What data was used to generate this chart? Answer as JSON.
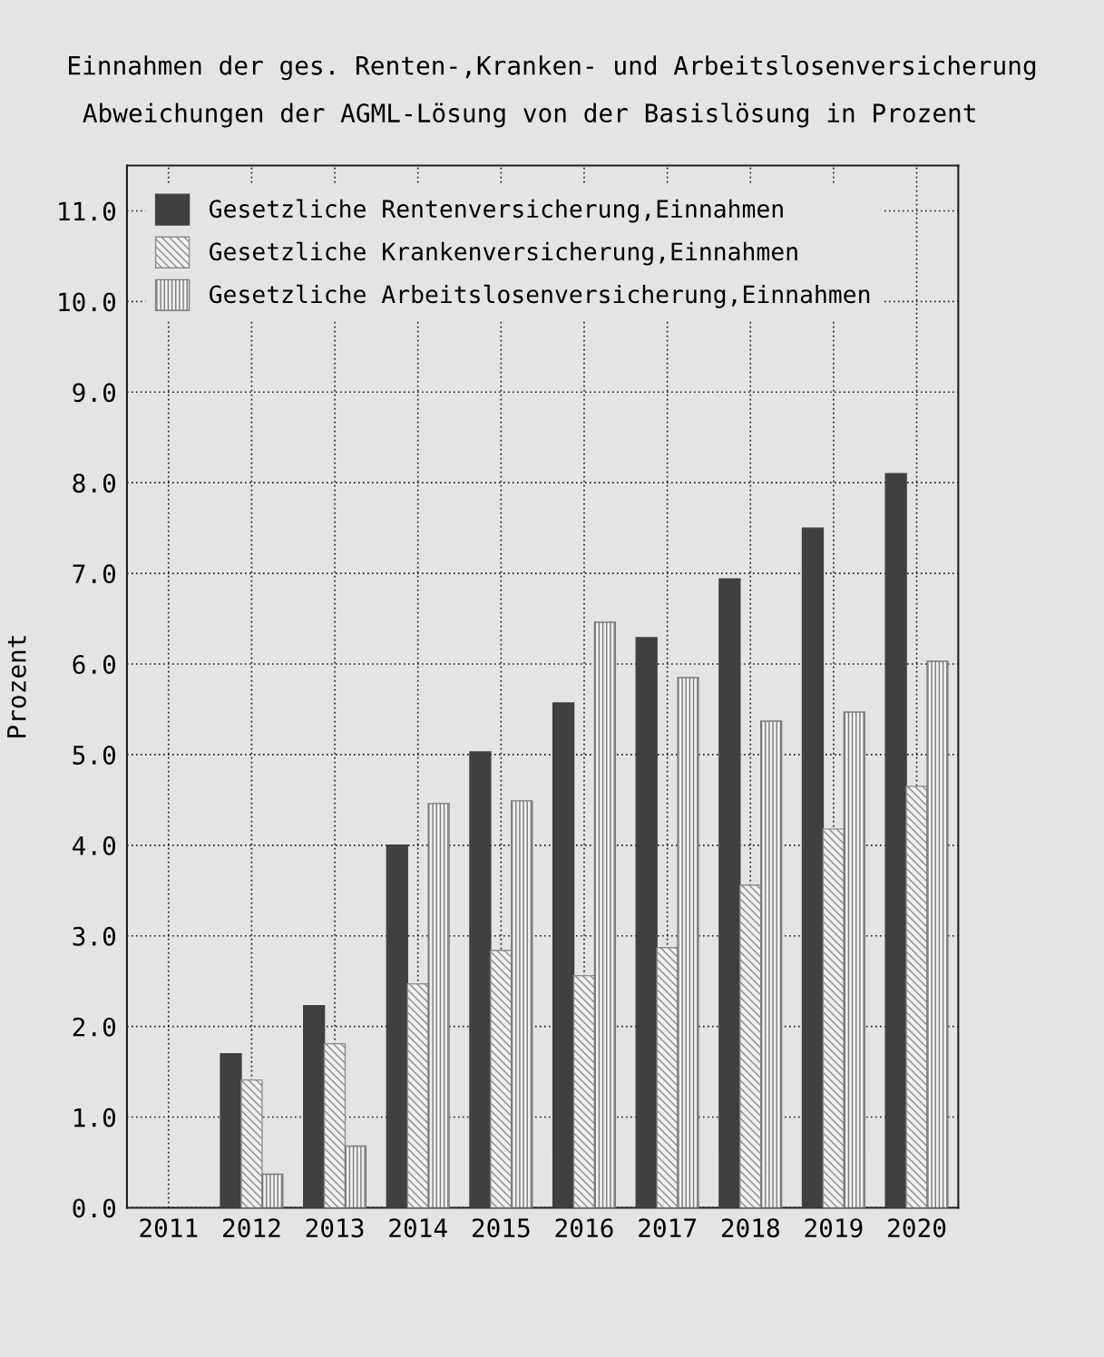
{
  "chart_data": {
    "type": "bar",
    "title": "Einnahmen der ges. Renten-,Kranken- und Arbeitslosenversicherung",
    "subtitle": "Abweichungen der AGML-Lösung von der Basislösung in Prozent",
    "ylabel": "Prozent",
    "categories": [
      "2011",
      "2012",
      "2013",
      "2014",
      "2015",
      "2016",
      "2017",
      "2018",
      "2019",
      "2020"
    ],
    "series": [
      {
        "name": "Gesetzliche Rentenversicherung,Einnahmen",
        "color": "#404040",
        "values": [
          null,
          1.7,
          2.23,
          4.0,
          5.03,
          5.57,
          6.29,
          6.94,
          7.5,
          8.1
        ]
      },
      {
        "name": "Gesetzliche Krankenversicherung,Einnahmen",
        "color": "#8c8c8c",
        "values": [
          null,
          1.41,
          1.81,
          2.47,
          2.84,
          2.56,
          2.87,
          3.56,
          4.18,
          4.65
        ]
      },
      {
        "name": "Gesetzliche Arbeitslosenversicherung,Einnahmen",
        "color": "#7a7a7a",
        "values": [
          null,
          0.37,
          0.68,
          4.46,
          4.49,
          6.46,
          5.85,
          5.37,
          5.47,
          6.03
        ]
      }
    ],
    "ylim": [
      0,
      11.5
    ],
    "yticks": [
      {
        "value": 0,
        "label": "0.0"
      },
      {
        "value": 1,
        "label": "1.0"
      },
      {
        "value": 2,
        "label": "2.0"
      },
      {
        "value": 3,
        "label": "3.0"
      },
      {
        "value": 4,
        "label": "4.0"
      },
      {
        "value": 5,
        "label": "5.0"
      },
      {
        "value": 6,
        "label": "6.0"
      },
      {
        "value": 7,
        "label": "7.0"
      },
      {
        "value": 8,
        "label": "8.0"
      },
      {
        "value": 9,
        "label": "9.0"
      },
      {
        "value": 10,
        "label": "10.0"
      },
      {
        "value": 11,
        "label": "11.0"
      }
    ],
    "grid": true,
    "legend": "top left"
  }
}
